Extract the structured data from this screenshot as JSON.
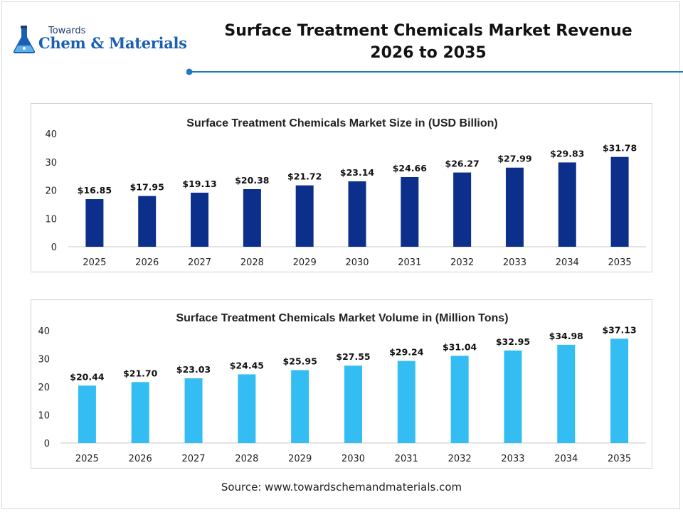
{
  "header": {
    "logo_small": "Towards",
    "logo_main": "Chem & Materials",
    "title_line1": "Surface Treatment Chemicals Market Revenue",
    "title_line2": "2026 to 2035",
    "accent_color": "#1a7bc0"
  },
  "source": "Source: www.towardschemandmaterials.com",
  "chart_data": [
    {
      "type": "bar",
      "title": "Surface Treatment Chemicals Market Size in (USD Billion)",
      "xlabel": "",
      "ylabel": "",
      "categories": [
        "2025",
        "2026",
        "2027",
        "2028",
        "2029",
        "2030",
        "2031",
        "2032",
        "2033",
        "2034",
        "2035"
      ],
      "values": [
        16.85,
        17.95,
        19.13,
        20.38,
        21.72,
        23.14,
        24.66,
        26.27,
        27.99,
        29.83,
        31.78
      ],
      "value_labels": [
        "$16.85",
        "$17.95",
        "$19.13",
        "$20.38",
        "$21.72",
        "$23.14",
        "$24.66",
        "$26.27",
        "$27.99",
        "$29.83",
        "$31.78"
      ],
      "yticks": [
        "0",
        "10",
        "20",
        "30",
        "40"
      ],
      "ylim": [
        0,
        40
      ],
      "grid": false,
      "bar_color": "#0b2f8a"
    },
    {
      "type": "bar",
      "title": "Surface Treatment Chemicals Market Volume in (Million Tons)",
      "xlabel": "",
      "ylabel": "",
      "categories": [
        "2025",
        "2026",
        "2027",
        "2028",
        "2029",
        "2030",
        "2031",
        "2032",
        "2033",
        "2034",
        "2035"
      ],
      "values": [
        20.44,
        21.7,
        23.03,
        24.45,
        25.95,
        27.55,
        29.24,
        31.04,
        32.95,
        34.98,
        37.13
      ],
      "value_labels": [
        "$20.44",
        "$21.70",
        "$23.03",
        "$24.45",
        "$25.95",
        "$27.55",
        "$29.24",
        "$31.04",
        "$32.95",
        "$34.98",
        "$37.13"
      ],
      "yticks": [
        "0",
        "10",
        "20",
        "30",
        "40"
      ],
      "ylim": [
        0,
        40
      ],
      "grid": false,
      "bar_color": "#33bdf2"
    }
  ]
}
